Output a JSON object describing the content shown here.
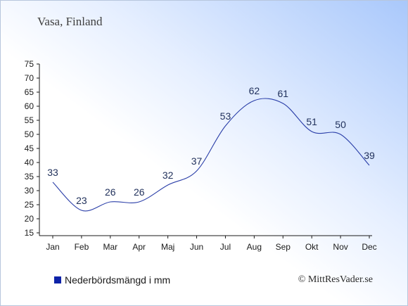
{
  "title": "Vasa, Finland",
  "chart_data": {
    "type": "line",
    "categories": [
      "Jan",
      "Feb",
      "Mar",
      "Apr",
      "Maj",
      "Jun",
      "Jul",
      "Aug",
      "Sep",
      "Okt",
      "Nov",
      "Dec"
    ],
    "series": [
      {
        "name": "Nederbördsmängd i mm",
        "values": [
          33,
          23,
          26,
          26,
          32,
          37,
          53,
          62,
          61,
          51,
          50,
          39
        ]
      }
    ],
    "ylim": [
      15,
      75
    ],
    "yticks": [
      15,
      20,
      25,
      30,
      35,
      40,
      45,
      50,
      55,
      60,
      65,
      70,
      75
    ],
    "grid": false,
    "legend": "bottom-left"
  },
  "legend_label": "Nederbördsmängd i mm",
  "credit": "© MittResVader.se",
  "colors": {
    "line": "#2a3ea8",
    "legend_swatch": "#0d22a8",
    "axis": "#1a1a1a"
  }
}
